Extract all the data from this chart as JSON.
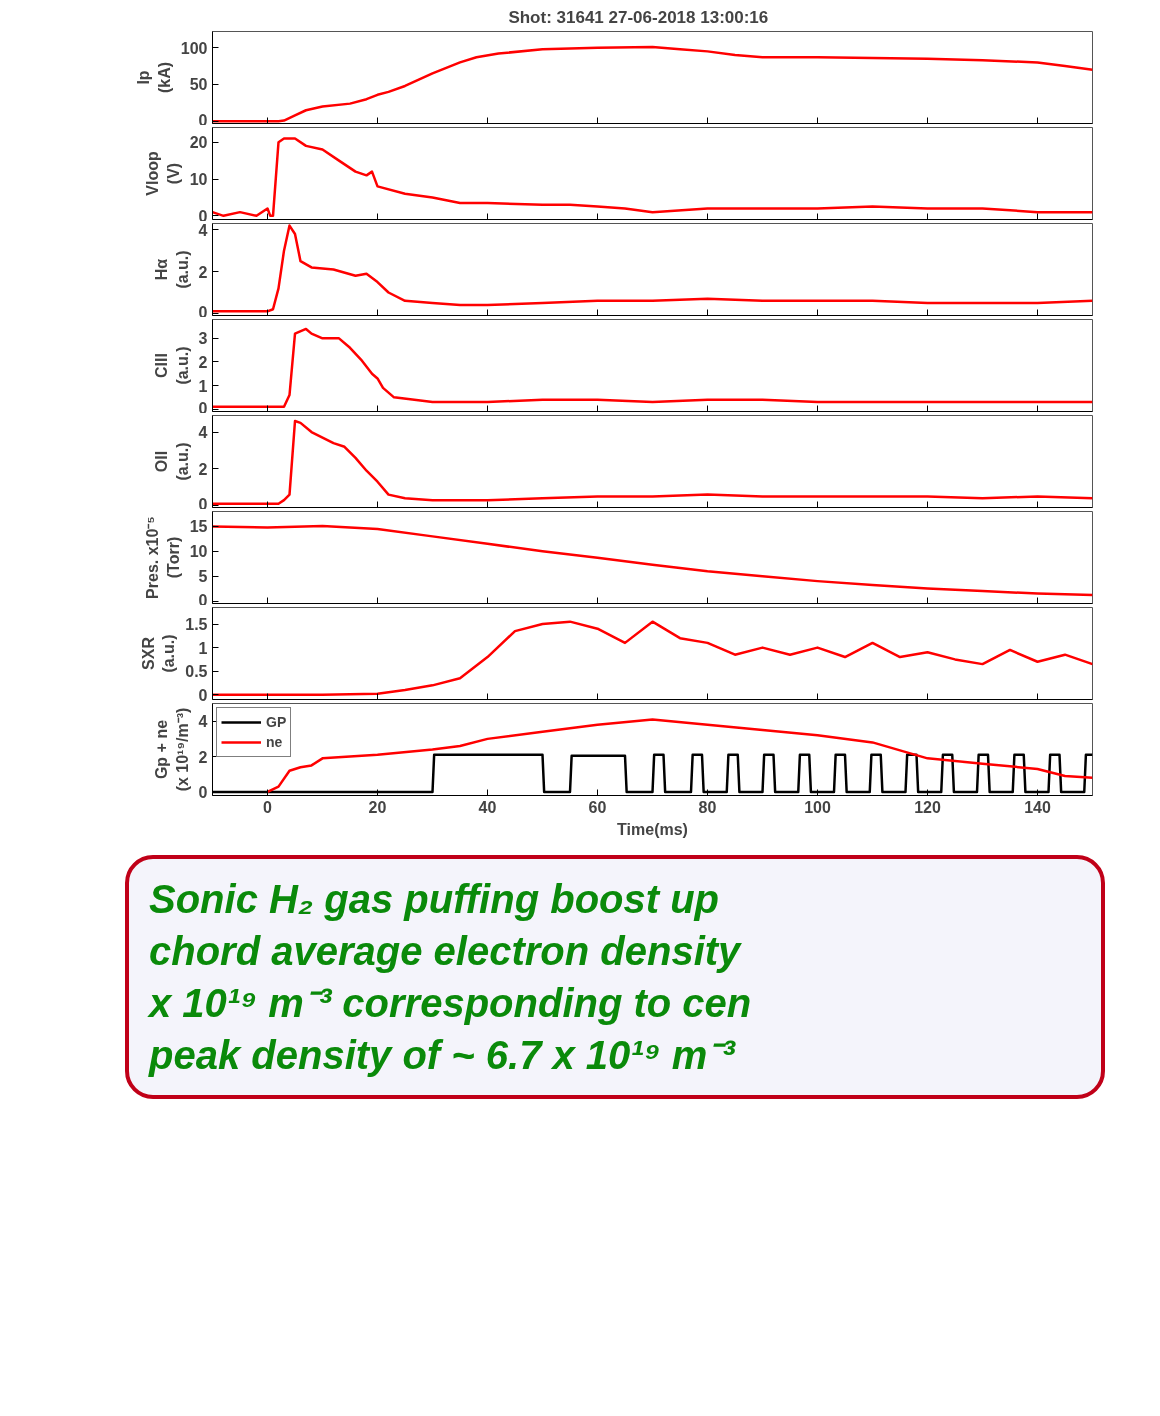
{
  "chart_data": [
    {
      "type": "line",
      "title": "Shot:  31641      27-06-2018 13:00:16",
      "ylabel": "Ip\n(kA)",
      "xlim": [
        -10,
        150
      ],
      "ylim": [
        -3,
        122
      ],
      "xticks": [
        0,
        20,
        40,
        60,
        80,
        100,
        120,
        140
      ],
      "yticks": [
        0,
        50,
        100
      ],
      "tick_labels": "y",
      "series": [
        {
          "color": "#ff0000",
          "x": [
            -10,
            2,
            3,
            5,
            7,
            10,
            15,
            18,
            20,
            22,
            25,
            30,
            35,
            38,
            42,
            50,
            60,
            70,
            75,
            80,
            85,
            90,
            100,
            110,
            120,
            130,
            140,
            145,
            150
          ],
          "values": [
            0,
            0,
            1,
            8,
            15,
            20,
            24,
            30,
            36,
            40,
            48,
            65,
            80,
            87,
            92,
            98,
            100,
            101,
            98,
            95,
            90,
            87,
            87,
            86,
            85,
            83,
            80,
            75,
            70
          ]
        }
      ]
    },
    {
      "type": "line",
      "ylabel": "Vloop\n(V)",
      "xlim": [
        -10,
        150
      ],
      "ylim": [
        -1,
        24
      ],
      "xticks": [
        0,
        20,
        40,
        60,
        80,
        100,
        120,
        140
      ],
      "yticks": [
        0,
        10,
        20
      ],
      "tick_labels": "y",
      "series": [
        {
          "color": "#ff0000",
          "x": [
            -10,
            -8,
            -5,
            -2,
            0,
            0.5,
            1,
            2,
            3,
            5,
            7,
            10,
            13,
            16,
            18,
            19,
            20,
            25,
            30,
            35,
            40,
            50,
            55,
            60,
            65,
            70,
            80,
            90,
            100,
            110,
            120,
            130,
            140,
            150
          ],
          "values": [
            1,
            0,
            1,
            0,
            2,
            0,
            0,
            20,
            21,
            21,
            19,
            18,
            15,
            12,
            11,
            12,
            8,
            6,
            5,
            3.5,
            3.5,
            3,
            3,
            2.5,
            2,
            1,
            2,
            2,
            2,
            2.5,
            2,
            2,
            1,
            1
          ]
        }
      ]
    },
    {
      "type": "line",
      "ylabel": "Hα\n(a.u.)",
      "xlim": [
        -10,
        150
      ],
      "ylim": [
        -0.1,
        4.3
      ],
      "xticks": [
        0,
        20,
        40,
        60,
        80,
        100,
        120,
        140
      ],
      "yticks": [
        0,
        2,
        4
      ],
      "tick_labels": "y",
      "series": [
        {
          "color": "#ff0000",
          "x": [
            -10,
            0,
            1,
            2,
            3,
            4,
            5,
            6,
            8,
            12,
            16,
            18,
            20,
            22,
            25,
            30,
            35,
            40,
            50,
            60,
            70,
            80,
            90,
            100,
            110,
            120,
            130,
            140,
            150
          ],
          "values": [
            0.1,
            0.1,
            0.2,
            1.2,
            3,
            4.2,
            3.8,
            2.5,
            2.2,
            2.1,
            1.8,
            1.9,
            1.5,
            1,
            0.6,
            0.5,
            0.4,
            0.4,
            0.5,
            0.6,
            0.6,
            0.7,
            0.6,
            0.6,
            0.6,
            0.5,
            0.5,
            0.5,
            0.6
          ]
        }
      ]
    },
    {
      "type": "line",
      "ylabel": "CIII\n(a.u.)",
      "xlim": [
        -10,
        150
      ],
      "ylim": [
        -0.1,
        3.8
      ],
      "xticks": [
        0,
        20,
        40,
        60,
        80,
        100,
        120,
        140
      ],
      "yticks": [
        0,
        1,
        2,
        3
      ],
      "tick_labels": "y",
      "series": [
        {
          "color": "#ff0000",
          "x": [
            -10,
            0,
            3,
            4,
            5,
            7,
            8,
            10,
            13,
            15,
            17,
            19,
            20,
            21,
            23,
            30,
            40,
            50,
            60,
            70,
            80,
            90,
            100,
            110,
            120,
            130,
            140,
            150
          ],
          "values": [
            0.1,
            0.1,
            0.1,
            0.6,
            3.2,
            3.4,
            3.2,
            3,
            3,
            2.6,
            2.1,
            1.5,
            1.3,
            0.9,
            0.5,
            0.3,
            0.3,
            0.4,
            0.4,
            0.3,
            0.4,
            0.4,
            0.3,
            0.3,
            0.3,
            0.3,
            0.3,
            0.3
          ]
        }
      ]
    },
    {
      "type": "line",
      "ylabel": "OII\n(a.u.)",
      "xlim": [
        -10,
        150
      ],
      "ylim": [
        -0.1,
        4.9
      ],
      "xticks": [
        0,
        20,
        40,
        60,
        80,
        100,
        120,
        140
      ],
      "yticks": [
        0,
        2,
        4
      ],
      "tick_labels": "y",
      "series": [
        {
          "color": "#ff0000",
          "x": [
            -10,
            2,
            3,
            4,
            5,
            6,
            8,
            12,
            14,
            16,
            18,
            20,
            22,
            25,
            30,
            40,
            50,
            60,
            70,
            80,
            90,
            100,
            110,
            120,
            130,
            140,
            150
          ],
          "values": [
            0.1,
            0.1,
            0.3,
            0.6,
            4.6,
            4.5,
            4,
            3.4,
            3.2,
            2.6,
            1.9,
            1.3,
            0.6,
            0.4,
            0.3,
            0.3,
            0.4,
            0.5,
            0.5,
            0.6,
            0.5,
            0.5,
            0.5,
            0.5,
            0.4,
            0.5,
            0.4
          ]
        }
      ]
    },
    {
      "type": "line",
      "ylabel": "Pres. x10⁻⁵\n(Torr)",
      "xlim": [
        -10,
        150
      ],
      "ylim": [
        -0.5,
        18
      ],
      "xticks": [
        0,
        20,
        40,
        60,
        80,
        100,
        120,
        140
      ],
      "yticks": [
        0,
        5,
        10,
        15
      ],
      "tick_labels": "y",
      "series": [
        {
          "color": "#ff0000",
          "x": [
            -10,
            0,
            10,
            20,
            30,
            40,
            50,
            60,
            70,
            80,
            90,
            100,
            110,
            120,
            130,
            140,
            150
          ],
          "values": [
            15,
            14.8,
            15.1,
            14.5,
            13,
            11.5,
            10,
            8.7,
            7.3,
            6,
            5,
            4,
            3.2,
            2.5,
            2,
            1.5,
            1.2
          ]
        }
      ]
    },
    {
      "type": "line",
      "ylabel": "SXR\n(a.u.)",
      "xlim": [
        -10,
        150
      ],
      "ylim": [
        -0.1,
        1.85
      ],
      "xticks": [
        0,
        20,
        40,
        60,
        80,
        100,
        120,
        140
      ],
      "yticks": [
        0,
        0.5,
        1,
        1.5
      ],
      "tick_labels": "y",
      "series": [
        {
          "color": "#ff0000",
          "x": [
            -10,
            0,
            10,
            20,
            25,
            30,
            35,
            40,
            45,
            50,
            55,
            60,
            65,
            70,
            75,
            80,
            85,
            90,
            95,
            100,
            105,
            110,
            115,
            120,
            125,
            130,
            135,
            140,
            145,
            150
          ],
          "values": [
            0,
            0,
            0,
            0.02,
            0.1,
            0.2,
            0.35,
            0.8,
            1.35,
            1.5,
            1.55,
            1.4,
            1.1,
            1.55,
            1.2,
            1.1,
            0.85,
            1,
            0.85,
            1,
            0.8,
            1.1,
            0.8,
            0.9,
            0.75,
            0.65,
            0.95,
            0.7,
            0.85,
            0.65
          ]
        }
      ]
    },
    {
      "type": "line",
      "ylabel": "Gp + ne\n(x 10¹⁹/m⁻³)",
      "xlabel": "Time(ms)",
      "xlim": [
        -10,
        150
      ],
      "ylim": [
        -0.2,
        5
      ],
      "xticks": [
        0,
        20,
        40,
        60,
        80,
        100,
        120,
        140
      ],
      "yticks": [
        0,
        2,
        4
      ],
      "legend": "top left",
      "series": [
        {
          "name": "GP",
          "color": "#000000",
          "x": [
            -10,
            30,
            30.3,
            50,
            50.3,
            55,
            55.3,
            65,
            65.3,
            70,
            70.3,
            72,
            72.3,
            77,
            77.3,
            79,
            79.3,
            83.5,
            83.8,
            85.5,
            85.8,
            90,
            90.3,
            92,
            92.3,
            96.5,
            96.8,
            98.5,
            98.8,
            103,
            103.3,
            105,
            105.3,
            109.5,
            109.8,
            111.5,
            111.8,
            116,
            116.3,
            118,
            118.3,
            122.5,
            122.8,
            124.5,
            124.8,
            129,
            129.3,
            131,
            131.3,
            135.5,
            135.8,
            137.5,
            137.8,
            142,
            142.3,
            144,
            144.3,
            148.5,
            148.8,
            150
          ],
          "values": [
            0,
            0,
            2.1,
            2.1,
            0,
            0,
            2.05,
            2.05,
            0,
            0,
            2.1,
            2.1,
            0,
            0,
            2.1,
            2.1,
            0,
            0,
            2.1,
            2.1,
            0,
            0,
            2.1,
            2.1,
            0,
            0,
            2.1,
            2.1,
            0,
            0,
            2.1,
            2.1,
            0,
            0,
            2.1,
            2.1,
            0,
            0,
            2.1,
            2.1,
            0,
            0,
            2.1,
            2.1,
            0,
            0,
            2.1,
            2.1,
            0,
            0,
            2.1,
            2.1,
            0,
            0,
            2.1,
            2.1,
            0,
            0,
            2.1,
            2.1
          ]
        },
        {
          "name": "ne",
          "color": "#ff0000",
          "x": [
            0,
            2,
            4,
            6,
            8,
            10,
            15,
            20,
            30,
            35,
            40,
            50,
            60,
            70,
            80,
            90,
            100,
            110,
            120,
            130,
            140,
            145,
            150
          ],
          "values": [
            0,
            0.3,
            1.2,
            1.4,
            1.5,
            1.9,
            2,
            2.1,
            2.4,
            2.6,
            3,
            3.4,
            3.8,
            4.1,
            3.8,
            3.5,
            3.2,
            2.8,
            1.9,
            1.6,
            1.3,
            0.9,
            0.8
          ]
        }
      ],
      "annotations": [
        "Sonic H₂ gas puffing boost up",
        "chord average electron density",
        "x 10¹⁹ m⁻³ corresponding to cen",
        "peak density of ~ 6.7 x 10¹⁹ m⁻³"
      ]
    }
  ]
}
